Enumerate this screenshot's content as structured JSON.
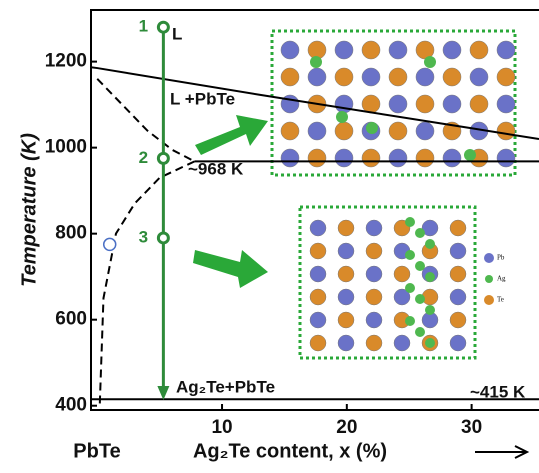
{
  "chart_data": {
    "type": "line",
    "y_label": "Temperature (K)",
    "x_label": "Ag₂Te content, x (%)",
    "x_origin_label": "PbTe",
    "xlim": [
      -0.5,
      35.4
    ],
    "ylim": [
      390,
      1320
    ],
    "xticks": [
      10,
      20,
      30
    ],
    "yticks": [
      400,
      600,
      800,
      1000,
      1200
    ],
    "series": [
      {
        "color": "#000000",
        "dash": false,
        "x": [
          -0.5,
          0,
          13,
          30,
          35.4
        ],
        "values": [
          1187,
          1185,
          1123,
          1045,
          1020
        ]
      },
      {
        "color": "#000000",
        "dash": false,
        "x": [
          7.8,
          35.4
        ],
        "values": [
          968,
          968
        ]
      },
      {
        "color": "#000000",
        "dash": true,
        "x": [
          0,
          2,
          4,
          6,
          7.8
        ],
        "values": [
          1160,
          1100,
          1040,
          995,
          968
        ]
      },
      {
        "color": "#000000",
        "dash": true,
        "x": [
          7.8,
          5,
          3,
          1.5,
          0.5,
          0.2
        ],
        "values": [
          968,
          930,
          870,
          800,
          650,
          400
        ]
      },
      {
        "color": "#000000",
        "dash": false,
        "x": [
          -0.5,
          35.4
        ],
        "values": [
          415,
          415
        ]
      }
    ],
    "path_points": {
      "color": "#2e8b3a",
      "labels": [
        "1",
        "2",
        "3"
      ],
      "x": [
        5.3,
        5.3,
        5.3
      ],
      "values": [
        1280,
        975,
        790
      ]
    },
    "open_point": {
      "color": "#4a6fc4",
      "x": [
        1.0
      ],
      "values": [
        775
      ]
    },
    "annotations": [
      "L",
      "L +PbTe",
      "~968 K",
      "Ag₂Te+PbTe",
      "~415 K"
    ],
    "inset_legend": [
      "Pb",
      "Ag",
      "Te"
    ]
  }
}
